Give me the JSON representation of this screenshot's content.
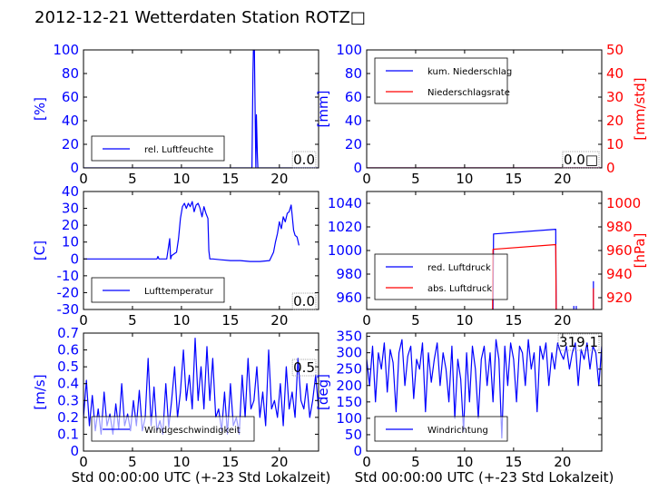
{
  "title": "2012-12-21 Wetterdaten Station ROTZ□",
  "colors": {
    "blue": "#0000ff",
    "red": "#ff0000"
  },
  "chart_data": [
    {
      "type": "line",
      "id": "humidity",
      "xlim": [
        0,
        24
      ],
      "ylim": [
        0,
        100
      ],
      "xticks": [
        0,
        5,
        10,
        15,
        20
      ],
      "yticks": [
        0,
        20,
        40,
        60,
        80,
        100
      ],
      "ylabel": "[%]",
      "ylabel_color": "blue",
      "legend": "bottom-left",
      "current_value": "0.0",
      "series": [
        {
          "name": "rel. Luftfeuchte",
          "color": "blue",
          "x": [
            0,
            17.2,
            17.3,
            17.35,
            17.45,
            17.5,
            17.6,
            17.65,
            17.75,
            17.8,
            17.9,
            24
          ],
          "y": [
            0,
            0,
            80,
            100,
            100,
            60,
            0,
            45,
            10,
            0,
            0,
            0
          ]
        }
      ]
    },
    {
      "type": "line",
      "id": "precip",
      "xlim": [
        0,
        24
      ],
      "ylim": [
        0,
        100
      ],
      "y2lim": [
        0,
        50
      ],
      "xticks": [
        0,
        5,
        10,
        15,
        20
      ],
      "yticks": [
        0,
        20,
        40,
        60,
        80,
        100
      ],
      "y2ticks": [
        0,
        10,
        20,
        30,
        40,
        50
      ],
      "ylabel": "[mm]",
      "ylabel_color": "blue",
      "y2label": "[mm/std]",
      "y2label_color": "red",
      "legend": "top-left",
      "current_value": "0.0□",
      "series": [
        {
          "name": "kum. Niederschlag",
          "color": "blue",
          "axis": "left",
          "x": [
            0,
            24
          ],
          "y": [
            0,
            0
          ]
        },
        {
          "name": "Niederschlagsrate",
          "color": "red",
          "axis": "right",
          "x": [
            0,
            24
          ],
          "y": [
            0,
            0
          ]
        }
      ]
    },
    {
      "type": "line",
      "id": "temperature",
      "xlim": [
        0,
        24
      ],
      "ylim": [
        -30,
        40
      ],
      "xticks": [
        0,
        5,
        10,
        15,
        20
      ],
      "yticks": [
        -30,
        -20,
        -10,
        0,
        10,
        20,
        30,
        40
      ],
      "ylabel": "[C]",
      "ylabel_color": "blue",
      "legend": "bottom-left",
      "current_value": "0.0",
      "series": [
        {
          "name": "Lufttemperatur",
          "color": "blue",
          "x": [
            0,
            7.5,
            7.6,
            7.7,
            8.5,
            8.8,
            8.9,
            9.0,
            9.5,
            9.7,
            9.9,
            10.1,
            10.3,
            10.5,
            10.7,
            10.9,
            11.1,
            11.3,
            11.5,
            11.7,
            11.9,
            12.1,
            12.3,
            12.5,
            12.7,
            12.8,
            12.9,
            13.2,
            14.0,
            15.0,
            16.0,
            17.0,
            18.0,
            19.0,
            19.4,
            19.6,
            19.8,
            20.0,
            20.2,
            20.4,
            20.6,
            20.8,
            21.0,
            21.1,
            21.2,
            21.3,
            21.45,
            21.6,
            21.8,
            22.0
          ],
          "y": [
            0,
            0,
            1.5,
            0,
            0,
            12,
            0,
            2,
            4,
            12,
            24,
            31,
            33,
            30,
            33,
            31,
            34,
            28,
            32,
            33,
            30,
            25,
            31,
            27,
            24,
            5,
            0,
            0,
            -0.5,
            -1,
            -1,
            -1.5,
            -1.5,
            -1,
            4,
            10,
            15,
            22,
            18,
            25,
            22,
            27,
            28,
            30,
            32,
            26,
            17,
            14,
            13,
            8
          ]
        }
      ]
    },
    {
      "type": "line",
      "id": "pressure",
      "xlim": [
        0,
        24
      ],
      "ylim": [
        950,
        1050
      ],
      "y2lim": [
        910,
        1010
      ],
      "xticks": [
        0,
        5,
        10,
        15,
        20
      ],
      "yticks": [
        960,
        980,
        1000,
        1020,
        1040
      ],
      "y2ticks": [
        920,
        940,
        960,
        980,
        1000
      ],
      "ylabel": "",
      "y2label": "[hPa]",
      "y2label_color": "red",
      "legend": "bottom-left",
      "series": [
        {
          "name": "red. Luftdruck",
          "color": "blue",
          "axis": "left",
          "x": [
            12.9,
            12.95,
            19.3,
            19.35
          ],
          "y": [
            950,
            1014,
            1018,
            950
          ]
        },
        {
          "name": "abs. Luftdruck",
          "color": "red",
          "axis": "right",
          "x": [
            12.85,
            12.9,
            19.3,
            19.35
          ],
          "y": [
            910,
            961,
            965,
            910
          ]
        }
      ],
      "extra_segments": [
        {
          "color": "blue",
          "axis": "left",
          "x": [
            21.15,
            21.15
          ],
          "y": [
            950,
            953
          ]
        },
        {
          "color": "blue",
          "axis": "left",
          "x": [
            21.4,
            21.4
          ],
          "y": [
            950,
            953
          ]
        },
        {
          "color": "blue",
          "axis": "left",
          "x": [
            23.15,
            23.15
          ],
          "y": [
            950,
            974
          ]
        },
        {
          "color": "red",
          "axis": "right",
          "x": [
            23.15,
            23.15
          ],
          "y": [
            910,
            928
          ]
        }
      ]
    },
    {
      "type": "line",
      "id": "wind-speed",
      "xlim": [
        0,
        24
      ],
      "ylim": [
        0,
        0.7
      ],
      "xticks": [
        0,
        5,
        10,
        15,
        20
      ],
      "yticks": [
        0,
        0.1,
        0.2,
        0.3,
        0.4,
        0.5,
        0.6,
        0.7
      ],
      "ylabel": "[m/s]",
      "ylabel_color": "blue",
      "xlabel": "Std 00:00:00 UTC (+-23 Std Lokalzeit)",
      "legend": "bottom-left",
      "current_value": "0.5",
      "series": [
        {
          "name": "Windgeschwindigkeit",
          "color": "blue",
          "x": [
            0,
            0.3,
            0.6,
            0.9,
            1.2,
            1.5,
            1.8,
            2.1,
            2.4,
            2.7,
            3.0,
            3.3,
            3.6,
            3.9,
            4.2,
            4.5,
            4.8,
            5.1,
            5.4,
            5.7,
            6.0,
            6.3,
            6.6,
            6.9,
            7.2,
            7.5,
            7.8,
            8.1,
            8.4,
            8.7,
            9.0,
            9.3,
            9.6,
            9.9,
            10.2,
            10.5,
            10.8,
            11.1,
            11.4,
            11.7,
            12.0,
            12.3,
            12.6,
            12.9,
            13.2,
            13.5,
            13.8,
            14.1,
            14.4,
            14.7,
            15.0,
            15.3,
            15.6,
            15.9,
            16.2,
            16.5,
            16.8,
            17.1,
            17.4,
            17.7,
            18.0,
            18.3,
            18.6,
            18.9,
            19.2,
            19.5,
            19.8,
            20.1,
            20.4,
            20.7,
            21.0,
            21.3,
            21.6,
            21.9,
            22.2,
            22.5,
            22.8,
            23.1,
            23.4,
            23.7,
            24.0
          ],
          "y": [
            0.2,
            0.42,
            0.15,
            0.33,
            0.12,
            0.25,
            0.1,
            0.35,
            0.15,
            0.22,
            0.1,
            0.28,
            0.13,
            0.4,
            0.15,
            0.22,
            0.12,
            0.3,
            0.15,
            0.36,
            0.12,
            0.2,
            0.55,
            0.15,
            0.38,
            0.12,
            0.18,
            0.1,
            0.4,
            0.14,
            0.3,
            0.5,
            0.2,
            0.35,
            0.6,
            0.3,
            0.45,
            0.25,
            0.67,
            0.3,
            0.5,
            0.25,
            0.62,
            0.3,
            0.55,
            0.2,
            0.25,
            0.12,
            0.35,
            0.1,
            0.4,
            0.15,
            0.2,
            0.1,
            0.45,
            0.2,
            0.55,
            0.25,
            0.3,
            0.5,
            0.2,
            0.35,
            0.15,
            0.6,
            0.25,
            0.3,
            0.2,
            0.4,
            0.15,
            0.5,
            0.25,
            0.35,
            0.2,
            0.55,
            0.3,
            0.25,
            0.4,
            0.2,
            0.3,
            0.45,
            0.25
          ]
        }
      ]
    },
    {
      "type": "line",
      "id": "wind-direction",
      "xlim": [
        0,
        24
      ],
      "ylim": [
        0,
        360
      ],
      "xticks": [
        0,
        5,
        10,
        15,
        20
      ],
      "yticks": [
        0,
        50,
        100,
        150,
        200,
        250,
        300,
        350
      ],
      "ylabel": "[deg]",
      "ylabel_color": "blue",
      "xlabel": "Std 00:00:00 UTC (+-23 Std Lokalzeit)",
      "legend": "bottom-left",
      "current_value": "319.1",
      "series": [
        {
          "name": "Windrichtung",
          "color": "blue",
          "x": [
            0,
            0.3,
            0.6,
            0.9,
            1.2,
            1.5,
            1.8,
            2.1,
            2.4,
            2.7,
            3.0,
            3.3,
            3.6,
            3.9,
            4.2,
            4.5,
            4.8,
            5.1,
            5.4,
            5.7,
            6.0,
            6.3,
            6.6,
            6.9,
            7.2,
            7.5,
            7.8,
            8.1,
            8.4,
            8.7,
            9.0,
            9.3,
            9.6,
            9.9,
            10.2,
            10.5,
            10.8,
            11.1,
            11.4,
            11.7,
            12.0,
            12.3,
            12.6,
            12.9,
            13.2,
            13.5,
            13.8,
            14.1,
            14.4,
            14.7,
            15.0,
            15.3,
            15.6,
            15.9,
            16.2,
            16.5,
            16.8,
            17.1,
            17.4,
            17.7,
            18.0,
            18.3,
            18.6,
            18.9,
            19.2,
            19.5,
            19.8,
            20.1,
            20.4,
            20.7,
            21.0,
            21.3,
            21.6,
            21.9,
            22.2,
            22.5,
            22.8,
            23.1,
            23.4,
            23.7,
            24.0
          ],
          "y": [
            280,
            200,
            320,
            150,
            300,
            250,
            330,
            180,
            310,
            270,
            120,
            300,
            340,
            200,
            290,
            320,
            160,
            280,
            250,
            330,
            120,
            300,
            210,
            280,
            330,
            200,
            300,
            250,
            150,
            320,
            100,
            280,
            220,
            60,
            300,
            150,
            320,
            250,
            100,
            280,
            320,
            200,
            300,
            150,
            340,
            280,
            40,
            320,
            200,
            330,
            280,
            150,
            320,
            300,
            200,
            340,
            250,
            300,
            120,
            320,
            280,
            330,
            200,
            300,
            250,
            330,
            300,
            280,
            320,
            250,
            300,
            330,
            200,
            310,
            280,
            330,
            250,
            320,
            300,
            200,
            320
          ]
        }
      ]
    }
  ]
}
